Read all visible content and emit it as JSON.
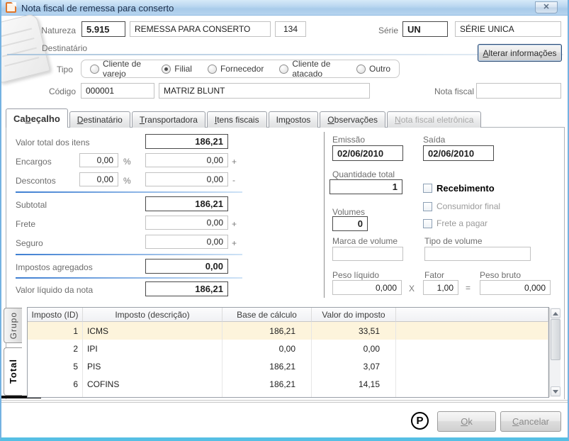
{
  "window": {
    "title": "Nota fiscal de remessa para conserto",
    "close_glyph": "✕"
  },
  "header": {
    "natureza_label": "Natureza",
    "natureza_code": "5.915",
    "natureza_desc": "REMESSA PARA CONSERTO",
    "natureza_num": "134",
    "serie_label": "Série",
    "serie_code": "UN",
    "serie_desc": "SÉRIE UNICA"
  },
  "destinatario": {
    "group_label": "Destinatário",
    "alterar_label": "Alterar informações",
    "alterar_mnemonic": "A",
    "tipo_label": "Tipo",
    "tipo_options": [
      {
        "label": "Cliente de varejo",
        "selected": false
      },
      {
        "label": "Filial",
        "selected": true
      },
      {
        "label": "Fornecedor",
        "selected": false
      },
      {
        "label": "Cliente de atacado",
        "selected": false
      },
      {
        "label": "Outro",
        "selected": false
      }
    ],
    "codigo_label": "Código",
    "codigo_value": "000001",
    "codigo_desc": "MATRIZ BLUNT",
    "nota_fiscal_label": "Nota fiscal",
    "nota_fiscal_value": ""
  },
  "tabs": [
    {
      "label": "Cabeçalho",
      "mnemonic": "b",
      "active": true,
      "disabled": false
    },
    {
      "label": "Destinatário",
      "mnemonic": "D",
      "active": false,
      "disabled": false
    },
    {
      "label": "Transportadora",
      "mnemonic": "T",
      "active": false,
      "disabled": false
    },
    {
      "label": "Itens fiscais",
      "mnemonic": "I",
      "active": false,
      "disabled": false
    },
    {
      "label": "Impostos",
      "mnemonic": "p",
      "active": false,
      "disabled": false
    },
    {
      "label": "Observações",
      "mnemonic": "O",
      "active": false,
      "disabled": false
    },
    {
      "label": "Nota fiscal eletrônica",
      "mnemonic": "N",
      "active": false,
      "disabled": true
    }
  ],
  "totais": {
    "valor_total_label": "Valor total dos itens",
    "valor_total": "186,21",
    "encargos_label": "Encargos",
    "encargos_pct": "0,00",
    "encargos_valor": "0,00",
    "descontos_label": "Descontos",
    "descontos_pct": "0,00",
    "descontos_valor": "0,00",
    "pct_symbol": "%",
    "plus_symbol": "+",
    "minus_symbol": "-",
    "subtotal_label": "Subtotal",
    "subtotal": "186,21",
    "frete_label": "Frete",
    "frete": "0,00",
    "seguro_label": "Seguro",
    "seguro": "0,00",
    "impostos_agregados_label": "Impostos agregados",
    "impostos_agregados": "0,00",
    "valor_liquido_label": "Valor líquido da nota",
    "valor_liquido": "186,21"
  },
  "detalhes": {
    "emissao_label": "Emissão",
    "emissao": "02/06/2010",
    "saida_label": "Saída",
    "saida": "02/06/2010",
    "quantidade_label": "Quantidade total",
    "quantidade": "1",
    "recebimento_label": "Recebimento",
    "consumidor_label": "Consumidor final",
    "frete_pagar_label": "Frete a pagar",
    "volumes_label": "Volumes",
    "volumes": "0",
    "marca_label": "Marca de volume",
    "marca": "",
    "tipo_volume_label": "Tipo de volume",
    "tipo_volume": "",
    "peso_liquido_label": "Peso líquido",
    "peso_liquido": "0,000",
    "fator_label": "Fator",
    "fator": "1,00",
    "peso_bruto_label": "Peso bruto",
    "peso_bruto": "0,000",
    "mult_symbol": "X",
    "equals_symbol": "="
  },
  "impostos_table": {
    "headers": [
      "Imposto (ID)",
      "Imposto (descrição)",
      "Base de cálculo",
      "Valor do imposto"
    ],
    "rows": [
      {
        "id": "1",
        "descricao": "ICMS",
        "base": "186,21",
        "valor": "33,51",
        "selected": true
      },
      {
        "id": "2",
        "descricao": "IPI",
        "base": "0,00",
        "valor": "0,00",
        "selected": false
      },
      {
        "id": "5",
        "descricao": "PIS",
        "base": "186,21",
        "valor": "3,07",
        "selected": false
      },
      {
        "id": "6",
        "descricao": "COFINS",
        "base": "186,21",
        "valor": "14,15",
        "selected": false
      }
    ]
  },
  "side_tabs": [
    {
      "label": "Grupo",
      "active": false
    },
    {
      "label": "Total",
      "active": true
    }
  ],
  "footer": {
    "p_symbol": "P",
    "ok_label": "Ok",
    "ok_mnemonic": "O",
    "cancel_label": "Cancelar",
    "cancel_mnemonic": "C"
  },
  "colors": {
    "window_border": "#56bfe4",
    "separator_blue": "#3f7fd2",
    "selected_row": "#fdf4dc",
    "titlebar_icon_orange": "#e0762a"
  }
}
